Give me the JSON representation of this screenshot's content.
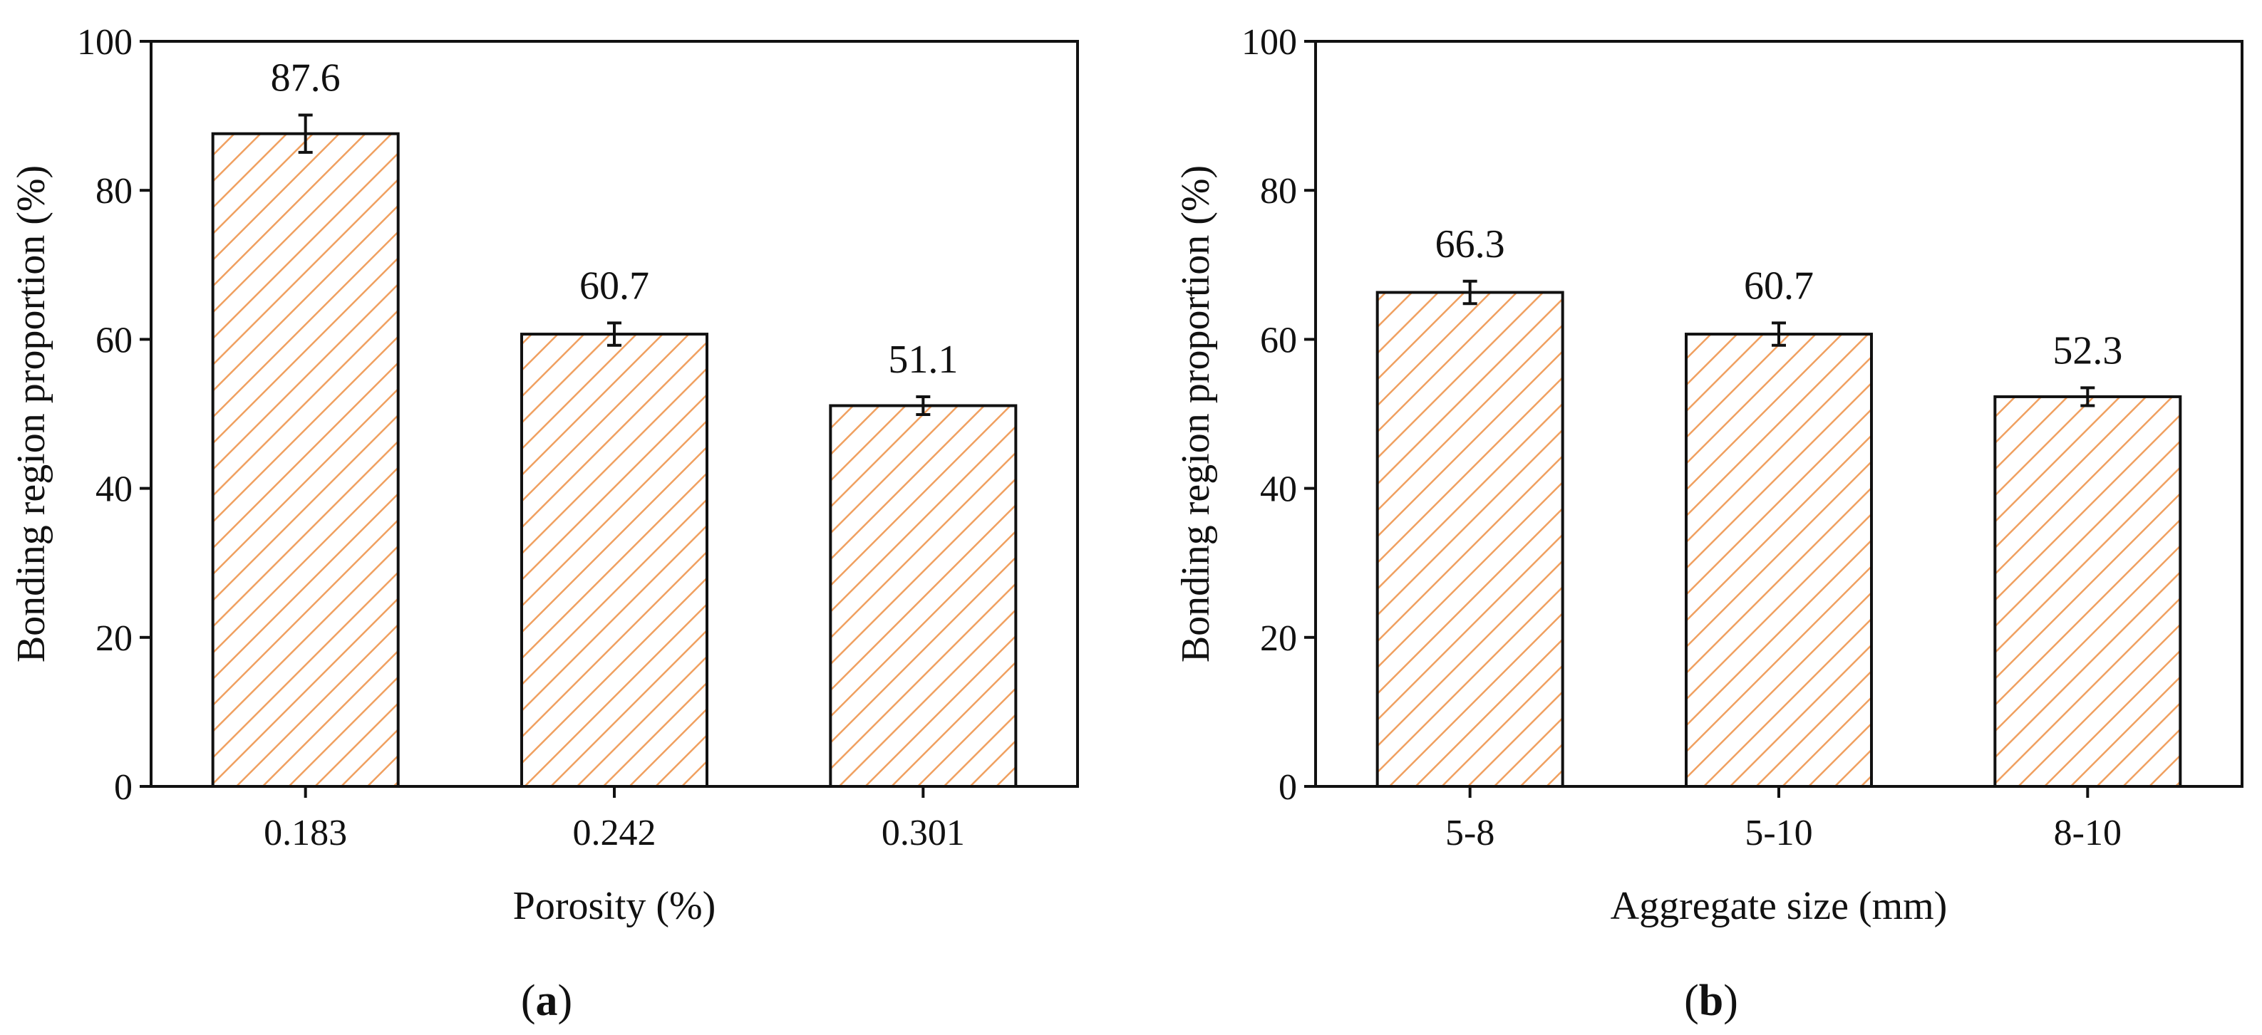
{
  "chart_data": [
    {
      "type": "bar",
      "panel_label": "a",
      "title": "",
      "xlabel": "Porosity (%)",
      "ylabel": "Bonding region proportion (%)",
      "categories": [
        "0.183",
        "0.242",
        "0.301"
      ],
      "values": [
        87.6,
        60.7,
        51.1
      ],
      "value_labels": [
        "87.6",
        "60.7",
        "51.1"
      ],
      "errors": [
        2.5,
        1.5,
        1.2
      ],
      "ylim": [
        0,
        100
      ],
      "yticks": [
        0,
        20,
        40,
        60,
        80,
        100
      ],
      "ytick_labels": [
        "0",
        "20",
        "40",
        "60",
        "80",
        "100"
      ],
      "bar_fill": "hatched",
      "bar_color": "#f0a060"
    },
    {
      "type": "bar",
      "panel_label": "b",
      "title": "",
      "xlabel": "Aggregate size (mm)",
      "ylabel": "Bonding region proportion (%)",
      "categories": [
        "5-8",
        "5-10",
        "8-10"
      ],
      "values": [
        66.3,
        60.7,
        52.3
      ],
      "value_labels": [
        "66.3",
        "60.7",
        "52.3"
      ],
      "errors": [
        1.5,
        1.5,
        1.2
      ],
      "ylim": [
        0,
        100
      ],
      "yticks": [
        0,
        20,
        40,
        60,
        80,
        100
      ],
      "ytick_labels": [
        "0",
        "20",
        "40",
        "60",
        "80",
        "100"
      ],
      "bar_fill": "hatched",
      "bar_color": "#f0a060"
    }
  ]
}
